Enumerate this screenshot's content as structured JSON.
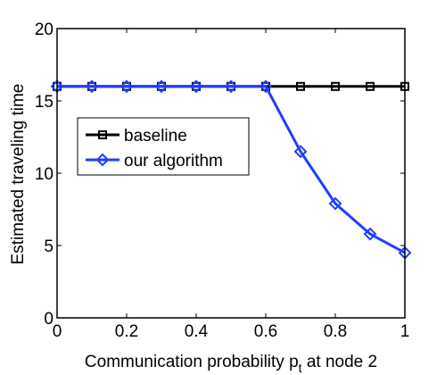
{
  "chart_data": {
    "type": "line",
    "title": "",
    "xlabel": "Communication probability p",
    "xlabel_subscript": "t",
    "xlabel_suffix": " at node 2",
    "ylabel": "Estimated traveling time",
    "xlim": [
      0,
      1
    ],
    "ylim": [
      0,
      20
    ],
    "x_ticks": [
      0,
      0.2,
      0.4,
      0.6,
      0.8,
      1
    ],
    "x_tick_labels": [
      "0",
      "0.2",
      "0.4",
      "0.6",
      "0.8",
      "1"
    ],
    "y_ticks": [
      0,
      5,
      10,
      15,
      20
    ],
    "y_tick_labels": [
      "0",
      "5",
      "10",
      "15",
      "20"
    ],
    "grid": false,
    "legend_position": "center-left",
    "x": [
      0,
      0.1,
      0.2,
      0.3,
      0.4,
      0.5,
      0.6,
      0.7,
      0.8,
      0.9,
      1.0
    ],
    "series": [
      {
        "name": "baseline",
        "color": "#000000",
        "marker": "square",
        "values": [
          16,
          16,
          16,
          16,
          16,
          16,
          16,
          16,
          16,
          16,
          16
        ]
      },
      {
        "name": "our algorithm",
        "color": "#1f3fff",
        "marker": "diamond",
        "values": [
          16,
          16,
          16,
          16,
          16,
          16,
          16,
          11.5,
          7.9,
          5.8,
          4.5
        ]
      }
    ]
  }
}
